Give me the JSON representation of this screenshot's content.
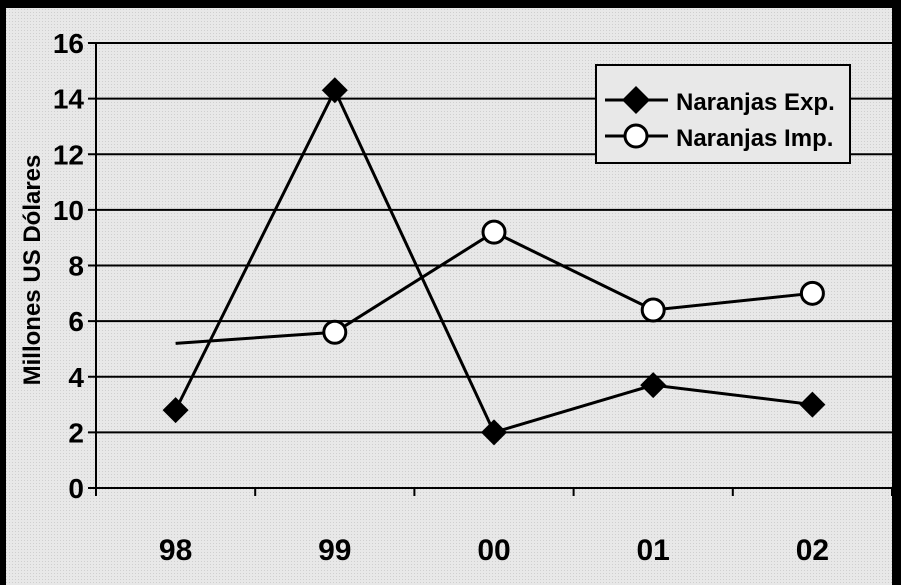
{
  "chart_data": {
    "type": "line",
    "title": "",
    "xlabel": "",
    "ylabel": "Millones US Dólares",
    "categories": [
      "98",
      "99",
      "00",
      "01",
      "02"
    ],
    "ylim": [
      0,
      16
    ],
    "y_ticks": [
      "0",
      "2",
      "4",
      "6",
      "8",
      "10",
      "12",
      "14",
      "16"
    ],
    "grid": true,
    "legend_position": "top-right",
    "series": [
      {
        "name": "Naranjas Exp.",
        "marker": "diamond",
        "values": [
          2.8,
          14.3,
          2.0,
          3.7,
          3.0
        ]
      },
      {
        "name": "Naranjas Imp.",
        "marker": "circle",
        "values": [
          5.2,
          5.6,
          9.2,
          6.4,
          7.0
        ]
      }
    ]
  },
  "colors": {
    "plot_background": "#e6e6e6",
    "line": "#000000",
    "marker_fill_open": "#ffffff",
    "marker_fill_solid": "#000000",
    "border": "#000000"
  }
}
